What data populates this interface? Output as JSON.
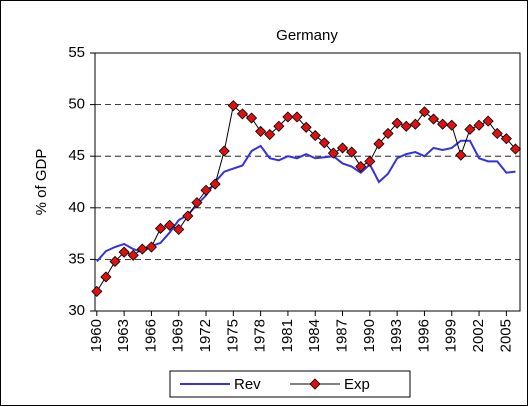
{
  "chart_data": {
    "type": "line",
    "title": "Germany",
    "ylabel": "% of GDP",
    "x": [
      1960,
      1961,
      1962,
      1963,
      1964,
      1965,
      1966,
      1967,
      1968,
      1969,
      1970,
      1971,
      1972,
      1973,
      1974,
      1975,
      1976,
      1977,
      1978,
      1979,
      1980,
      1981,
      1982,
      1983,
      1984,
      1985,
      1986,
      1987,
      1988,
      1989,
      1990,
      1991,
      1992,
      1993,
      1994,
      1995,
      1996,
      1997,
      1998,
      1999,
      2000,
      2001,
      2002,
      2003,
      2004,
      2005,
      2006
    ],
    "series": [
      {
        "name": "Rev",
        "color": "#3333dd",
        "values": [
          34.8,
          35.8,
          36.2,
          36.5,
          36.0,
          35.7,
          36.3,
          36.6,
          37.6,
          38.8,
          39.3,
          40.3,
          41.2,
          42.5,
          43.5,
          43.8,
          44.1,
          45.5,
          46.0,
          44.8,
          44.6,
          45.0,
          44.8,
          45.2,
          44.8,
          44.9,
          45.0,
          44.3,
          44.0,
          43.4,
          44.2,
          42.5,
          43.3,
          44.8,
          45.2,
          45.4,
          45.0,
          45.8,
          45.6,
          45.8,
          46.5,
          46.5,
          44.8,
          44.5,
          44.5,
          43.4,
          43.5
        ]
      },
      {
        "name": "Exp",
        "color": "#000000",
        "marker_color": "#dd1111",
        "values": [
          31.9,
          33.3,
          34.8,
          35.7,
          35.4,
          36.0,
          36.2,
          38.0,
          38.3,
          37.9,
          39.2,
          40.5,
          41.7,
          42.3,
          45.5,
          49.9,
          49.1,
          48.7,
          47.4,
          47.1,
          47.9,
          48.8,
          48.8,
          47.8,
          47.0,
          46.3,
          45.3,
          45.8,
          45.4,
          44.0,
          44.5,
          46.2,
          47.2,
          48.2,
          47.9,
          48.1,
          49.3,
          48.6,
          48.1,
          48.0,
          45.1,
          47.6,
          48.0,
          48.4,
          47.2,
          46.7,
          45.7
        ]
      }
    ],
    "xlim": [
      1959.8,
      2006.5
    ],
    "xticks": [
      1960,
      1963,
      1966,
      1969,
      1972,
      1975,
      1978,
      1981,
      1984,
      1987,
      1990,
      1993,
      1996,
      1999,
      2002,
      2005
    ],
    "ylim": [
      30,
      55
    ],
    "yticks": [
      30,
      35,
      40,
      45,
      50,
      55
    ],
    "grid": true,
    "legend": "bottom"
  }
}
